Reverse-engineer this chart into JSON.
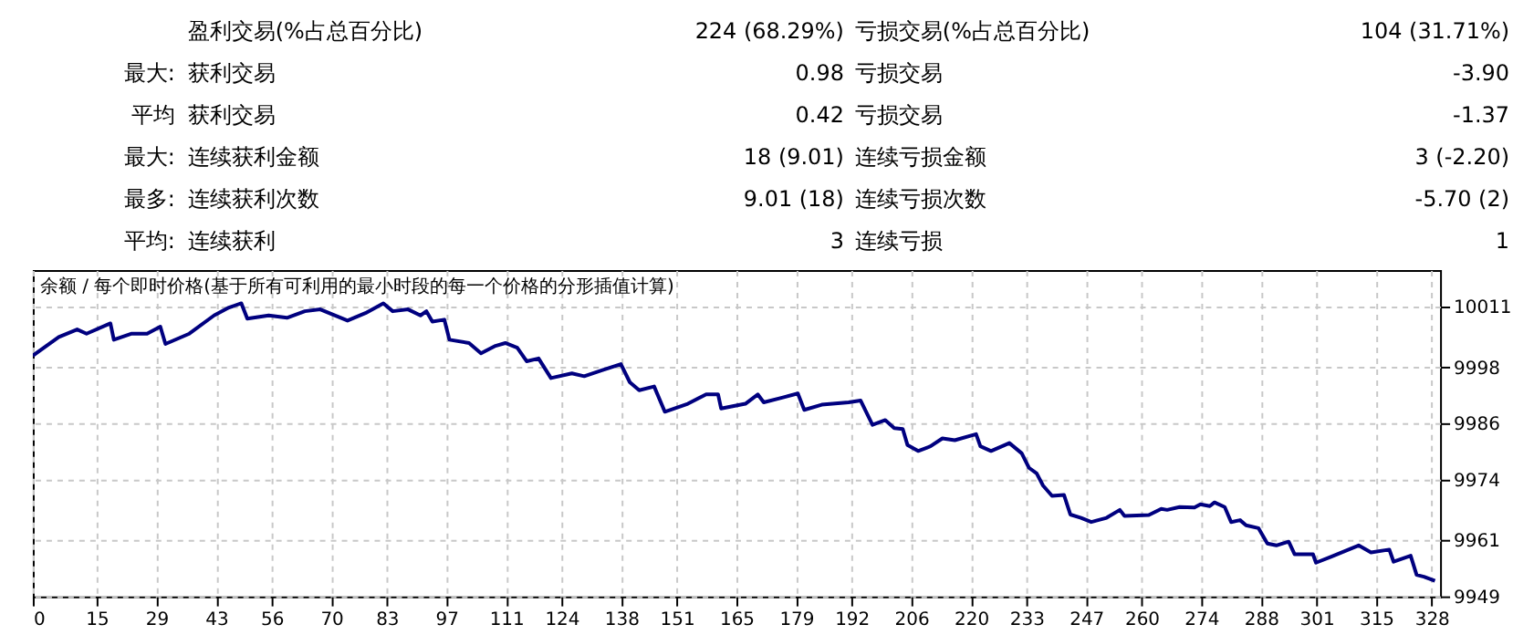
{
  "chart_data": {
    "type": "line",
    "title": "余额 / 每个即时价格(基于所有可利用的最小时段的每一个价格的分形插值计算)",
    "annotations": [
      "盈利交易(%占总百分比)",
      "224 (68.29%)",
      "亏损交易(%占总百分比)",
      "104 (31.71%)",
      "最大:",
      "获利交易",
      "0.98",
      "亏损交易",
      "-3.90",
      "平均",
      "获利交易",
      "0.42",
      "亏损交易",
      "-1.37",
      "最大:",
      "连续获利金额",
      "18 (9.01)",
      "连续亏损金额",
      "3 (-2.20)",
      "最多:",
      "连续获利次数",
      "9.01 (18)",
      "连续亏损次数",
      "-5.70 (2)",
      "平均:",
      "连续获利",
      "3",
      "连续亏损",
      "1"
    ],
    "color": "#00007f",
    "x": [
      0,
      6.1,
      10.4,
      12.6,
      18.2,
      19,
      23.2,
      26.8,
      29.9,
      31.1,
      36.7,
      42.5,
      46,
      48.9,
      50.3,
      55.3,
      59.6,
      63.8,
      67.4,
      73.8,
      78,
      82.2,
      84.4,
      88,
      90.9,
      92.3,
      93.7,
      96.5,
      97.7,
      102.3,
      105.1,
      108.5,
      110.8,
      113.6,
      115.8,
      118.6,
      121.5,
      126.4,
      129.3,
      133.6,
      137.9,
      140,
      142.2,
      145.7,
      148.2,
      153.6,
      157.9,
      160.7,
      161.4,
      167.1,
      170,
      171.4,
      175.7,
      179.4,
      180.9,
      185,
      191.3,
      194.1,
      196.9,
      199.9,
      202,
      204,
      205.1,
      207.6,
      210.5,
      213.3,
      216.2,
      221.2,
      222.2,
      224.7,
      229,
      231.9,
      233.6,
      235.4,
      236.9,
      239,
      241.8,
      243.3,
      245.8,
      248.2,
      251.8,
      254.9,
      256,
      261.7,
      264.6,
      266,
      268.9,
      272.4,
      273.8,
      276,
      277.1,
      279.5,
      281,
      283.1,
      284.5,
      287.4,
      289.5,
      291.6,
      294.5,
      295.9,
      300.2,
      300.9,
      304.5,
      310.9,
      313.8,
      318.1,
      319.1,
      323.1,
      324.5,
      326.2,
      328.8
    ],
    "values": [
      10000.5,
      10004.5,
      10006.1,
      10005.2,
      10007.4,
      10003.9,
      10005.2,
      10005.2,
      10006.7,
      10003,
      10005.2,
      10009.1,
      10010.8,
      10011.7,
      10008.4,
      10009.1,
      10008.6,
      10010,
      10010.4,
      10008,
      10009.6,
      10011.7,
      10010,
      10010.4,
      10009.1,
      10010,
      10007.8,
      10008.2,
      10003.9,
      10003.2,
      10001,
      10002.6,
      10003.2,
      10002.2,
      9999.3,
      9999.9,
      9995.7,
      9996.7,
      9996.1,
      9997.4,
      9998.7,
      9994.8,
      9993.1,
      9993.9,
      9988.5,
      9990.2,
      9992.2,
      9992.2,
      9989.2,
      9990.2,
      9992.2,
      9990.5,
      9991.5,
      9992.4,
      9988.9,
      9990,
      9990.5,
      9990.9,
      9985.7,
      9986.7,
      9985,
      9984.8,
      9981.4,
      9980.1,
      9981.1,
      9982.8,
      9982.4,
      9983.7,
      9981.1,
      9980.1,
      9981.8,
      9979.6,
      9976.5,
      9975.3,
      9972.7,
      9970.5,
      9970.7,
      9966.5,
      9965.8,
      9964.9,
      9965.8,
      9967.5,
      9966.2,
      9966.4,
      9967.7,
      9967.5,
      9968.1,
      9968,
      9968.7,
      9968.3,
      9969.1,
      9968.1,
      9964.9,
      9965.3,
      9964.2,
      9963.6,
      9960.3,
      9959.9,
      9960.7,
      9958,
      9958,
      9956.2,
      9957.5,
      9959.9,
      9958.4,
      9959,
      9956.4,
      9957.7,
      9953.6,
      9953.2,
      9952.3
    ],
    "xlim": [
      0,
      330
    ],
    "xticks": [
      0,
      15,
      29,
      43,
      56,
      70,
      83,
      97,
      111,
      124,
      138,
      151,
      165,
      179,
      192,
      206,
      220,
      233,
      247,
      260,
      274,
      288,
      301,
      315,
      328
    ],
    "ylim": [
      9949,
      10018.8
    ],
    "yticks": [
      9949,
      9961,
      9974,
      9986,
      9998,
      10011
    ],
    "grid": true
  }
}
